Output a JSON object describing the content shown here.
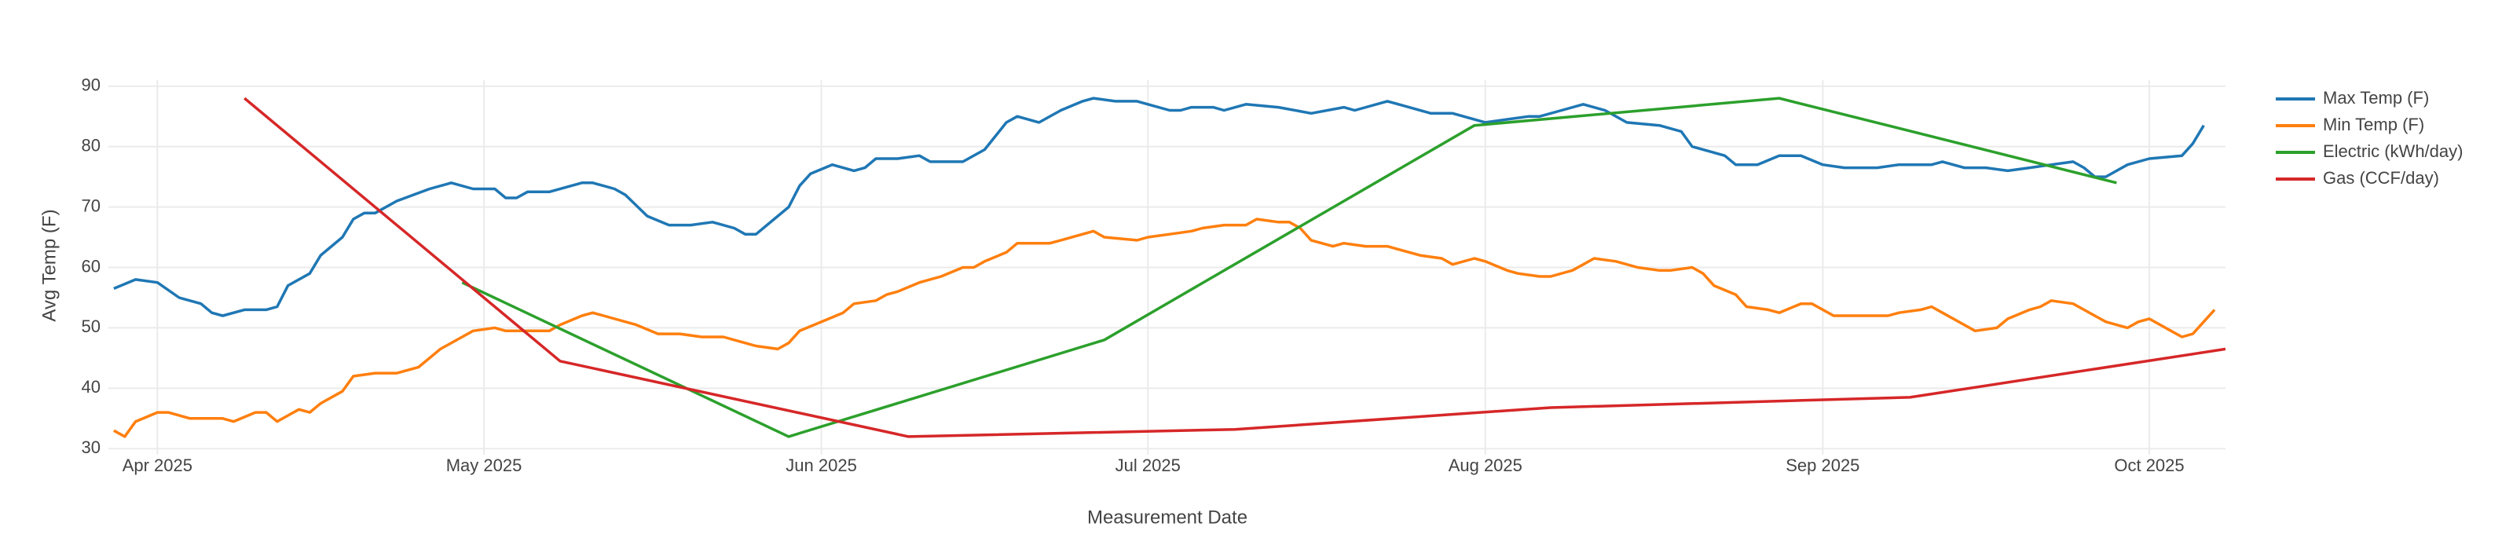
{
  "chart_data": {
    "type": "line",
    "x_label": "Measurement Date",
    "y_label": "Avg Temp (F)",
    "xlim": [
      -4.5,
      190
    ],
    "ylim": [
      29,
      91
    ],
    "xticks": [
      {
        "value": 0,
        "label": "Apr 2025"
      },
      {
        "value": 30,
        "label": "May 2025"
      },
      {
        "value": 61,
        "label": "Jun 2025"
      },
      {
        "value": 91,
        "label": "Jul 2025"
      },
      {
        "value": 122,
        "label": "Aug 2025"
      },
      {
        "value": 153,
        "label": "Sep 2025"
      },
      {
        "value": 183,
        "label": "Oct 2025"
      }
    ],
    "yticks": [
      30,
      40,
      50,
      60,
      70,
      80,
      90
    ],
    "grid": true,
    "legend": "right",
    "series": [
      {
        "name": "Max Temp (F)",
        "color": "#1f77b4",
        "x": [
          -4,
          -2,
          0,
          2,
          4,
          5,
          6,
          8,
          10,
          11,
          12,
          14,
          15,
          17,
          18,
          19,
          20,
          22,
          25,
          27,
          29,
          31,
          32,
          33,
          34,
          36,
          39,
          40,
          42,
          43,
          45,
          47,
          49,
          51,
          53,
          54,
          55,
          56,
          58,
          59,
          60,
          62,
          64,
          65,
          66,
          68,
          70,
          71,
          74,
          76,
          78,
          79,
          81,
          83,
          85,
          86,
          88,
          90,
          91,
          93,
          94,
          95,
          97,
          98,
          100,
          103,
          106,
          109,
          110,
          113,
          115,
          117,
          119,
          122,
          124,
          126,
          127,
          129,
          131,
          133,
          135,
          138,
          140,
          141,
          144,
          145,
          147,
          149,
          151,
          153,
          155,
          158,
          160,
          163,
          164,
          166,
          168,
          170,
          172,
          174,
          176,
          177,
          178,
          179,
          181,
          183,
          186,
          187,
          188
        ],
        "values": [
          56.5,
          58,
          57.5,
          55,
          54,
          52.5,
          52,
          53,
          53,
          53.5,
          57,
          59,
          62,
          65,
          68,
          69,
          69,
          71,
          73,
          74,
          73,
          73,
          71.5,
          71.5,
          72.5,
          72.5,
          74,
          74,
          73,
          72,
          68.5,
          67,
          67,
          67.5,
          66.5,
          65.5,
          65.5,
          67,
          70,
          73.5,
          75.5,
          77,
          76,
          76.5,
          78,
          78,
          78.5,
          77.5,
          77.5,
          79.5,
          84,
          85,
          84,
          86,
          87.5,
          88,
          87.5,
          87.5,
          87,
          86,
          86,
          86.5,
          86.5,
          86,
          87,
          86.5,
          85.5,
          86.5,
          86,
          87.5,
          86.5,
          85.5,
          85.5,
          84,
          84.5,
          85,
          85,
          86,
          87,
          86,
          84,
          83.5,
          82.5,
          80,
          78.5,
          77,
          77,
          78.5,
          78.5,
          77,
          76.5,
          76.5,
          77,
          77,
          77.5,
          76.5,
          76.5,
          76,
          76.5,
          77,
          77.5,
          76.5,
          75,
          75,
          77,
          78,
          78.5,
          80.5,
          83.5
        ]
      },
      {
        "name": "Min Temp (F)",
        "color": "#ff7f0e",
        "x": [
          -4,
          -3,
          -2,
          0,
          1,
          3,
          4,
          6,
          7,
          9,
          10,
          11,
          12,
          13,
          14,
          15,
          17,
          18,
          20,
          22,
          24,
          25,
          26,
          28,
          29,
          31,
          32,
          34,
          36,
          37,
          39,
          40,
          41,
          44,
          46,
          48,
          50,
          52,
          54,
          55,
          57,
          58,
          59,
          61,
          63,
          64,
          66,
          67,
          68,
          70,
          72,
          74,
          75,
          76,
          78,
          79,
          81,
          82,
          83,
          85,
          86,
          87,
          90,
          91,
          93,
          95,
          96,
          98,
          100,
          101,
          103,
          104,
          105,
          106,
          108,
          109,
          111,
          113,
          114,
          116,
          118,
          119,
          121,
          122,
          124,
          125,
          127,
          128,
          130,
          131,
          132,
          134,
          136,
          138,
          139,
          141,
          142,
          143,
          145,
          146,
          148,
          149,
          151,
          152,
          154,
          155,
          158,
          159,
          160,
          162,
          163,
          164,
          166,
          167,
          169,
          170,
          172,
          173,
          174,
          176,
          177,
          179,
          181,
          182,
          183,
          185,
          186,
          187,
          188,
          189
        ],
        "values": [
          33,
          32,
          34.5,
          36,
          36,
          35,
          35,
          35,
          34.5,
          36,
          36,
          34.5,
          35.5,
          36.5,
          36,
          37.5,
          39.5,
          42,
          42.5,
          42.5,
          43.5,
          45,
          46.5,
          48.5,
          49.5,
          50,
          49.5,
          49.5,
          49.5,
          50.5,
          52,
          52.5,
          52,
          50.5,
          49,
          49,
          48.5,
          48.5,
          47.5,
          47,
          46.5,
          47.5,
          49.5,
          51,
          52.5,
          54,
          54.5,
          55.5,
          56,
          57.5,
          58.5,
          60,
          60,
          61,
          62.5,
          64,
          64,
          64,
          64.5,
          65.5,
          66,
          65,
          64.5,
          65,
          65.5,
          66,
          66.5,
          67,
          67,
          68,
          67.5,
          67.5,
          66.5,
          64.5,
          63.5,
          64,
          63.5,
          63.5,
          63,
          62,
          61.5,
          60.5,
          61.5,
          61,
          59.5,
          59,
          58.5,
          58.5,
          59.5,
          60.5,
          61.5,
          61,
          60,
          59.5,
          59.5,
          60,
          59,
          57,
          55.5,
          53.5,
          53,
          52.5,
          54,
          54,
          52,
          52,
          52,
          52,
          52.5,
          53,
          53.5,
          52.5,
          50.5,
          49.5,
          50,
          51.5,
          53,
          53.5,
          54.5,
          54,
          53,
          51,
          50,
          51,
          51.5,
          49.5,
          48.5,
          49,
          51,
          53
        ]
      },
      {
        "name": "Electric (kWh/day)",
        "color": "#2ca02c",
        "x": [
          28,
          58,
          87,
          121,
          149,
          180
        ],
        "values": [
          57.5,
          32,
          48,
          83.5,
          88,
          74
        ]
      },
      {
        "name": "Gas (CCF/day)",
        "color": "#d62728",
        "x": [
          8,
          37,
          69,
          99,
          128,
          161,
          190
        ],
        "values": [
          88,
          44.5,
          32,
          33.2,
          36.8,
          38.5,
          46.5
        ]
      }
    ]
  }
}
